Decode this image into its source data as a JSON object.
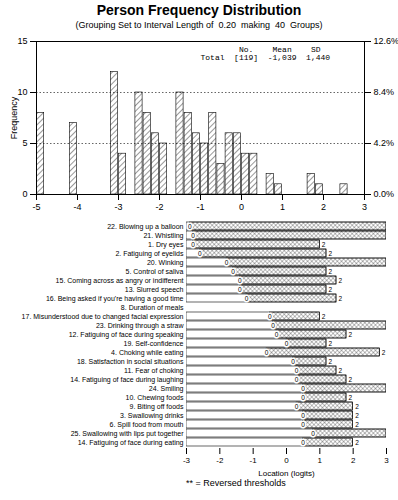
{
  "chart_data": [
    {
      "type": "bar",
      "title": "Person Frequency Distribution",
      "subtitle": "(Grouping Set to Interval Length of  0.20  making  40  Groups)",
      "ylabel": "Frequency",
      "x": [
        -4.9,
        -4.1,
        -3.1,
        -2.9,
        -2.5,
        -2.3,
        -2.1,
        -1.9,
        -1.5,
        -1.3,
        -1.1,
        -0.9,
        -0.7,
        -0.5,
        -0.3,
        -0.1,
        0.1,
        0.3,
        0.7,
        0.9,
        1.7,
        1.9,
        2.5
      ],
      "values": [
        8,
        7,
        12,
        4,
        10,
        8,
        6,
        5,
        10,
        8,
        6,
        5,
        8,
        3,
        6,
        6,
        4,
        4,
        2,
        1,
        2,
        1,
        1
      ],
      "xlim": [
        -5,
        3
      ],
      "xticks": [
        -5,
        -4,
        -3,
        -2,
        -1,
        0,
        1,
        2,
        3
      ],
      "ylim": [
        0,
        15
      ],
      "yticks": [
        0,
        5,
        10,
        15
      ],
      "y2lim": [
        0,
        12.6
      ],
      "y2ticks": [
        {
          "value": 0,
          "label": "0.0%"
        },
        {
          "value": 4.2,
          "label": "4.2%"
        },
        {
          "value": 8.4,
          "label": "8.4%"
        },
        {
          "value": 12.6,
          "label": "12.6%"
        }
      ],
      "grid": true,
      "annotations": [
        "        No.    Mean    SD",
        "Total  [119]  -1,039  1,440"
      ]
    },
    {
      "type": "threshold_map",
      "orientation": "horizontal",
      "xlabel": "Location (logits)",
      "categories": [
        "22. Blowing up a balloon",
        "21. Whistling",
        "1. Dry eyes",
        "2. Fatiguing of eyelids",
        "20. Winking",
        "5. Control of saliva",
        "15. Coming across as angry or indifferent",
        "13. Slurred speech",
        "16. Being asked if you're having a good time",
        "8. Duration of meals",
        "17. Misunderstood due to changed facial expression",
        "23. Drinking through a straw",
        "12. Fatiguing of face during speaking",
        "19. Self-confidence",
        "4. Choking while eating",
        "18. Satisfaction in social situations",
        "11. Fear of choking",
        "14. Fatiguing of face during laughing",
        "24. Smiling",
        "10. Chewing foods",
        "9. Biting off foods",
        "3. Swallowing drinks",
        "6. Spill food from mouth",
        "25. Swallowing with lips put together",
        "14. Fatiguing of face during eating"
      ],
      "threshold_start": [
        -3.0,
        -3.0,
        -3.0,
        -3.0,
        -3.0,
        -3.0,
        -3.0,
        -3.0,
        -3.0,
        null,
        -3.0,
        -3.0,
        -3.0,
        -3.0,
        -3.0,
        -3.0,
        -3.0,
        -3.0,
        -3.0,
        -3.0,
        -3.0,
        -3.0,
        -3.0,
        -3.0,
        -3.0
      ],
      "threshold_end": [
        3.0,
        3.0,
        1.0,
        1.2,
        3.0,
        1.2,
        1.5,
        1.2,
        1.5,
        null,
        1.0,
        3.0,
        1.8,
        1.2,
        2.8,
        1.2,
        1.5,
        1.8,
        3.0,
        1.8,
        2.0,
        2.0,
        2.0,
        3.0,
        2.0
      ],
      "zero_point": [
        -2.9,
        -2.8,
        -2.8,
        -2.6,
        -1.8,
        -1.6,
        -1.4,
        -1.4,
        -1.2,
        null,
        -0.5,
        -0.4,
        -0.3,
        0.0,
        -0.6,
        0.2,
        0.3,
        0.3,
        0.5,
        0.5,
        0.3,
        0.5,
        0.5,
        0.8,
        0.5
      ],
      "zero_label": "0",
      "end_label": "2",
      "xlim": [
        -3,
        3
      ],
      "xticks": [
        -3,
        -2,
        -1,
        0,
        1,
        2,
        3
      ],
      "footnote": "** = Reversed thresholds"
    }
  ]
}
